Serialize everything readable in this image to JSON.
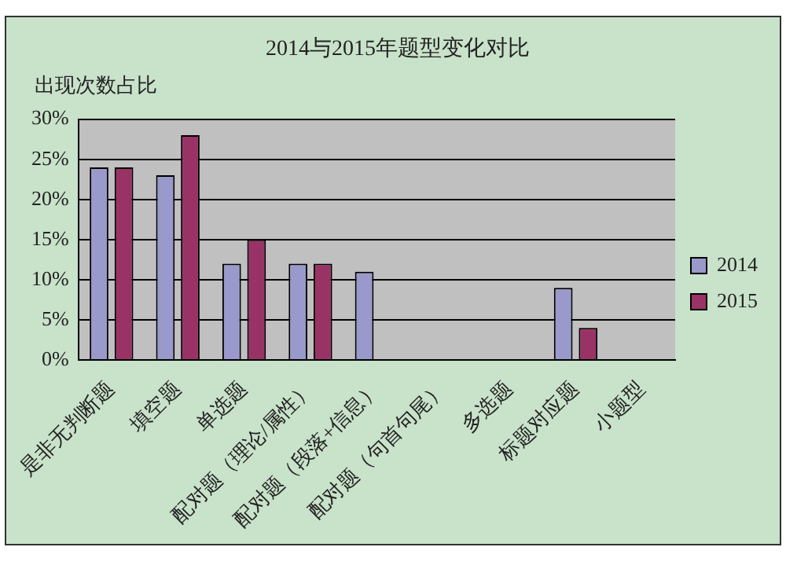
{
  "chart_data": {
    "type": "bar",
    "title": "2014与2015年题型变化对比",
    "ylabel": "出现次数占比",
    "categories": [
      "是非无判断题",
      "填空题",
      "单选题",
      "配对题（理论/属性）",
      "配对题（段落+信息）",
      "配对题（句首句尾）",
      "多选题",
      "标题对应题",
      "小题型"
    ],
    "series": [
      {
        "name": "2014",
        "color": "#9999cc",
        "values": [
          24,
          23,
          12,
          12,
          11,
          null,
          null,
          9,
          null
        ]
      },
      {
        "name": "2015",
        "color": "#993366",
        "values": [
          24,
          28,
          15,
          12,
          null,
          null,
          null,
          4,
          null
        ]
      }
    ],
    "ylim": [
      0,
      30
    ],
    "yticks": [
      {
        "value": 0,
        "label": "0%"
      },
      {
        "value": 5,
        "label": "5%"
      },
      {
        "value": 10,
        "label": "10%"
      },
      {
        "value": 15,
        "label": "15%"
      },
      {
        "value": 20,
        "label": "20%"
      },
      {
        "value": 25,
        "label": "25%"
      },
      {
        "value": 30,
        "label": "30%"
      }
    ],
    "grid": "y",
    "legend": "right"
  }
}
